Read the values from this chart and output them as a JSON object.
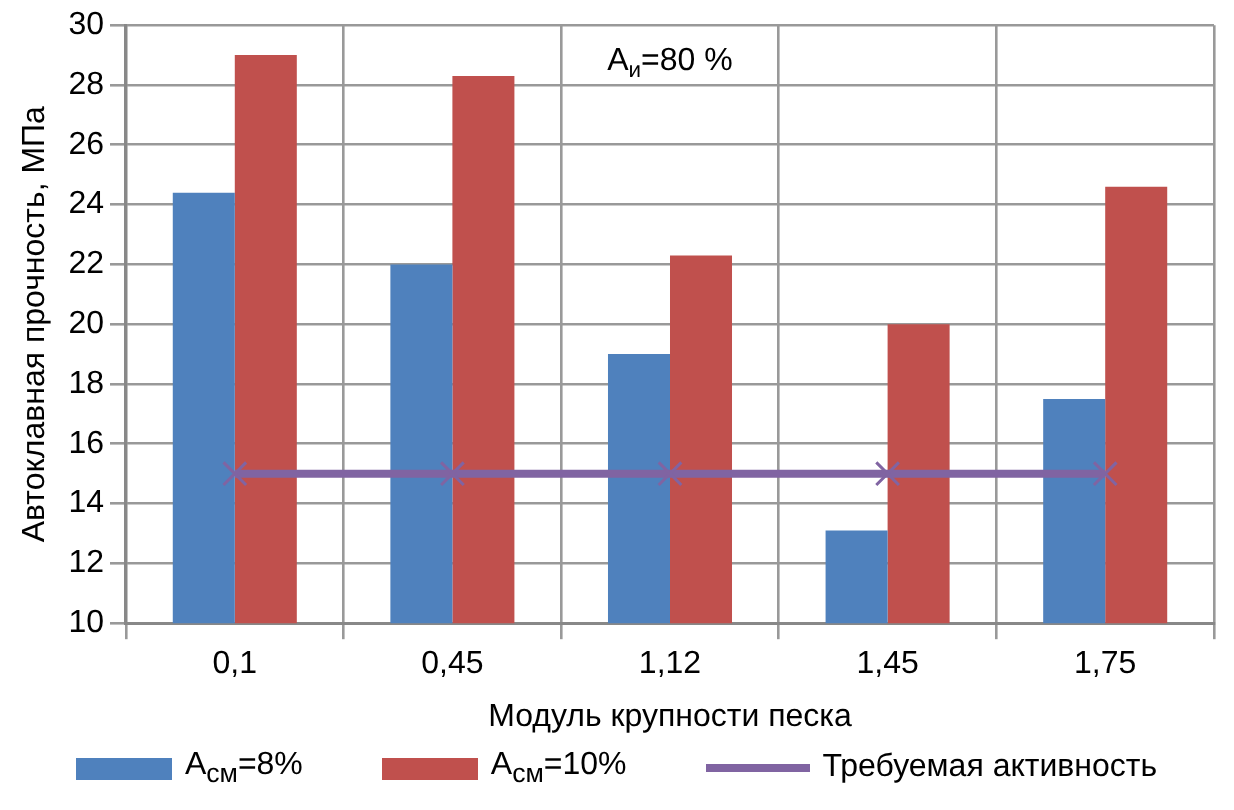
{
  "chart_data": {
    "type": "bar",
    "xlabel": "Модуль крупности песка",
    "ylabel": "Автоклавная прочность, МПа",
    "categories": [
      "0,1",
      "0,45",
      "1,12",
      "1,45",
      "1,75"
    ],
    "series": [
      {
        "name": "A$_{см}$=8%",
        "color": "#4f81bd",
        "values": [
          24.4,
          22,
          19,
          13.1,
          17.5
        ]
      },
      {
        "name": "A$_{см}$=10%",
        "color": "#c0504d",
        "values": [
          29,
          28.3,
          22.3,
          20,
          24.6
        ]
      },
      {
        "name": "Требуемая активность",
        "color": "#8064a2",
        "type": "line",
        "marker": "cross",
        "values": [
          15,
          15,
          15,
          15,
          15
        ]
      }
    ],
    "ylim": [
      10,
      30
    ],
    "yticks": [
      10,
      12,
      14,
      16,
      18,
      20,
      22,
      24,
      26,
      28,
      30
    ],
    "grid": true,
    "legend": "bottom",
    "annotations": [
      "A$_{и}$=80 %"
    ]
  }
}
